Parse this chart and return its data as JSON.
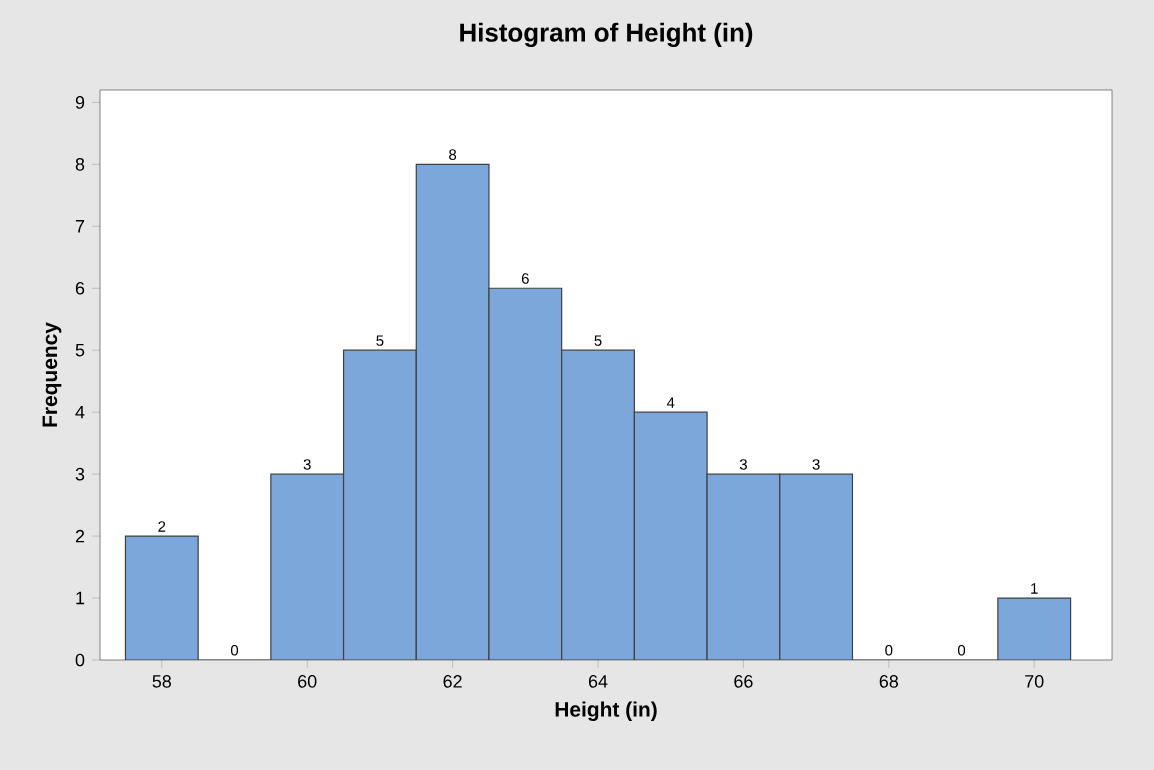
{
  "chart_data": {
    "type": "histogram",
    "title": "Histogram of Height (in)",
    "xlabel": "Height (in)",
    "ylabel": "Frequency",
    "bins": [
      57.5,
      58.5,
      59.5,
      60.5,
      61.5,
      62.5,
      63.5,
      64.5,
      65.5,
      66.5,
      67.5,
      68.5,
      69.5,
      70.5
    ],
    "values": [
      2,
      0,
      3,
      5,
      8,
      6,
      5,
      4,
      3,
      3,
      0,
      0,
      1
    ],
    "color": "#7ba7db",
    "data_labels": true,
    "grid": false,
    "xlim": [
      57.15,
      71.07
    ],
    "ylim": [
      0,
      9.2
    ],
    "xticks": [
      58,
      60,
      62,
      64,
      66,
      68,
      70
    ],
    "yticks": [
      0,
      1,
      2,
      3,
      4,
      5,
      6,
      7,
      8,
      9
    ]
  }
}
